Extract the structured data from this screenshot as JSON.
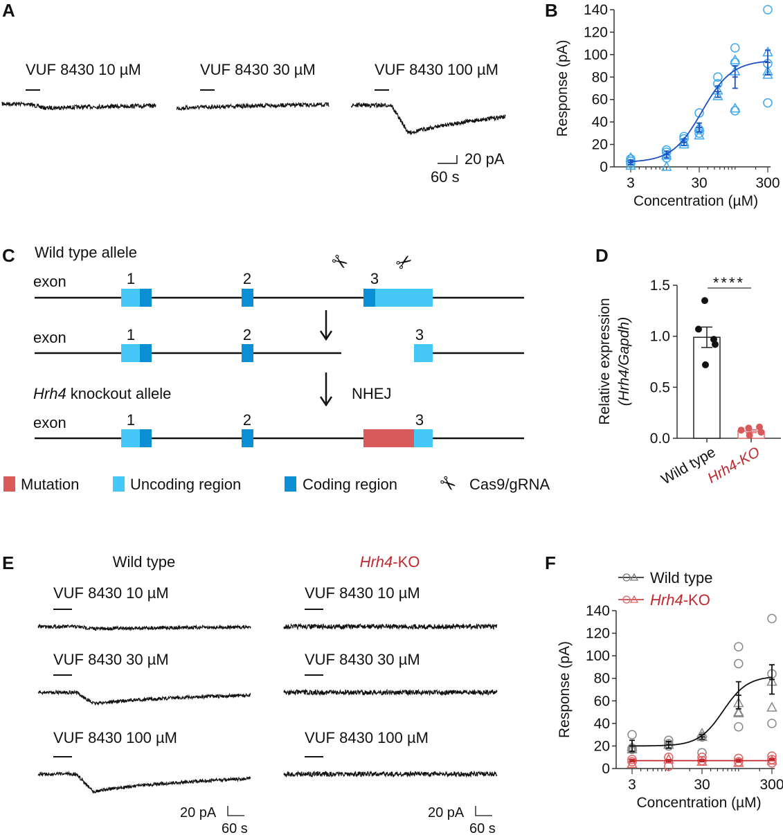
{
  "panel_labels": {
    "a": "A",
    "b": "B",
    "c": "C",
    "d": "D",
    "e": "E",
    "f": "F"
  },
  "panel_a": {
    "trace_labels": [
      "VUF 8430 10 µM",
      "VUF 8430 30 µM",
      "VUF 8430 100 µM"
    ],
    "scale_bar": {
      "current": "20 pA",
      "time": "60 s"
    }
  },
  "panel_c": {
    "wild_type_title": "Wild type allele",
    "ko_title_gene": "Hrh4",
    "ko_title_rest": " knockout allele",
    "exon_label": "exon",
    "exon_numbers": [
      "1",
      "2",
      "3"
    ],
    "nhej_label": "NHEJ",
    "legend": [
      {
        "label": "Mutation",
        "color": "#d95a5a"
      },
      {
        "label": "Uncoding region",
        "color": "#45c8f7"
      },
      {
        "label": "Coding region",
        "color": "#0a8fd4"
      },
      {
        "label": "Cas9/gRNA",
        "icon": "scissors-icon"
      }
    ]
  },
  "panel_e": {
    "wild_type_header": "Wild type",
    "ko_header_gene": "Hrh4",
    "ko_header_rest": "-KO",
    "trace_labels": [
      "VUF 8430 10 µM",
      "VUF 8430 30 µM",
      "VUF 8430 100 µM"
    ],
    "scale_bar": {
      "current": "20  pA",
      "time": "60 s"
    }
  },
  "chart_data": [
    {
      "id": "B",
      "type": "scatter",
      "xlabel": "Concentration (µM)",
      "ylabel": "Response (pA)",
      "xscale": "log",
      "xlim": [
        2.5,
        330
      ],
      "ylim": [
        0,
        140
      ],
      "xticks": [
        "3",
        "30",
        "300"
      ],
      "yticks": [
        "0",
        "20",
        "40",
        "60",
        "80",
        "100",
        "120",
        "140"
      ],
      "color": "#3fa8ee",
      "fit_color": "#1b4fc2",
      "x": [
        3,
        10,
        18,
        30,
        56,
        100,
        300
      ],
      "mean": [
        4,
        11,
        22,
        35,
        67,
        80,
        93
      ],
      "sem": [
        2,
        3,
        3,
        4,
        5,
        10,
        11
      ],
      "points_circle": [
        [
          3,
          3
        ],
        [
          3,
          5
        ],
        [
          3,
          7
        ],
        [
          10,
          15
        ],
        [
          10,
          13
        ],
        [
          10,
          8
        ],
        [
          18,
          27
        ],
        [
          18,
          25
        ],
        [
          30,
          48
        ],
        [
          30,
          33
        ],
        [
          30,
          30
        ],
        [
          56,
          80
        ],
        [
          56,
          74
        ],
        [
          100,
          106
        ],
        [
          100,
          93
        ],
        [
          100,
          50
        ],
        [
          300,
          140
        ],
        [
          300,
          92
        ],
        [
          300,
          57
        ]
      ],
      "points_triangle": [
        [
          3,
          8
        ],
        [
          3,
          1
        ],
        [
          10,
          10
        ],
        [
          10,
          0
        ],
        [
          18,
          20
        ],
        [
          18,
          22
        ],
        [
          30,
          28
        ],
        [
          30,
          35
        ],
        [
          56,
          68
        ],
        [
          56,
          63
        ],
        [
          100,
          95
        ],
        [
          100,
          85
        ],
        [
          100,
          52
        ],
        [
          300,
          102
        ],
        [
          300,
          82
        ],
        [
          300,
          85
        ]
      ]
    },
    {
      "id": "D",
      "type": "bar",
      "ylabel_line1": "Relative expression",
      "ylabel_line2": "(Hrh4/Gapdh)",
      "categories": [
        "Wild type",
        "Hrh4-KO"
      ],
      "category_colors": [
        "#111111",
        "#c0282d"
      ],
      "ylim": [
        0,
        1.5
      ],
      "yticks": [
        "0.0",
        "0.5",
        "1.0",
        "1.5"
      ],
      "values": [
        0.99,
        0.07
      ],
      "sem": [
        0.1,
        0.015
      ],
      "points": [
        [
          1.35,
          1.07,
          0.97,
          0.92,
          0.72
        ],
        [
          0.1,
          0.08,
          0.11,
          0.06,
          0.03
        ]
      ],
      "point_colors": [
        "#111111",
        "#d95a5a"
      ],
      "significance": "****"
    },
    {
      "id": "F",
      "type": "scatter",
      "xlabel": "Concentration (µM)",
      "ylabel": "Response (pA)",
      "xscale": "log",
      "xlim": [
        2.5,
        330
      ],
      "ylim": [
        0,
        140
      ],
      "xticks": [
        "3",
        "30",
        "300"
      ],
      "yticks": [
        "0",
        "20",
        "40",
        "60",
        "80",
        "100",
        "120",
        "140"
      ],
      "legend_position": "top-left",
      "series": [
        {
          "name": "Wild type",
          "color": "#888888",
          "fit_color": "#111111",
          "x": [
            3,
            10,
            30,
            100,
            300
          ],
          "mean": [
            20,
            21,
            28,
            65,
            79
          ],
          "sem": [
            5,
            3,
            2,
            12,
            13
          ],
          "points_circle": [
            [
              3,
              30
            ],
            [
              3,
              18
            ],
            [
              3,
              17
            ],
            [
              10,
              25
            ],
            [
              10,
              20
            ],
            [
              10,
              22
            ],
            [
              30,
              14
            ],
            [
              30,
              28
            ],
            [
              100,
              108
            ],
            [
              100,
              93
            ],
            [
              100,
              37
            ],
            [
              300,
              133
            ],
            [
              300,
              84
            ],
            [
              300,
              40
            ]
          ],
          "points_triangle": [
            [
              3,
              19
            ],
            [
              3,
              17
            ],
            [
              10,
              21
            ],
            [
              30,
              31
            ],
            [
              30,
              28
            ],
            [
              100,
              58
            ],
            [
              100,
              50
            ],
            [
              100,
              49
            ],
            [
              300,
              77
            ],
            [
              300,
              54
            ]
          ]
        },
        {
          "name_gene": "Hrh4",
          "name_rest": "-KO",
          "name": "Hrh4-KO",
          "color": "#e06060",
          "fit_color": "#c0282d",
          "x": [
            3,
            10,
            30,
            100,
            300
          ],
          "mean": [
            7,
            7,
            7,
            7,
            8
          ],
          "sem": [
            1,
            1,
            1,
            1,
            1
          ],
          "points_circle": [
            [
              3,
              8
            ],
            [
              3,
              6
            ],
            [
              10,
              10
            ],
            [
              10,
              2
            ],
            [
              30,
              10
            ],
            [
              30,
              7
            ],
            [
              100,
              9
            ],
            [
              100,
              6
            ],
            [
              300,
              11
            ],
            [
              300,
              5
            ],
            [
              300,
              8
            ]
          ],
          "points_triangle": [
            [
              3,
              4
            ],
            [
              10,
              8
            ],
            [
              30,
              6
            ],
            [
              100,
              5
            ],
            [
              300,
              7
            ]
          ]
        }
      ]
    }
  ]
}
